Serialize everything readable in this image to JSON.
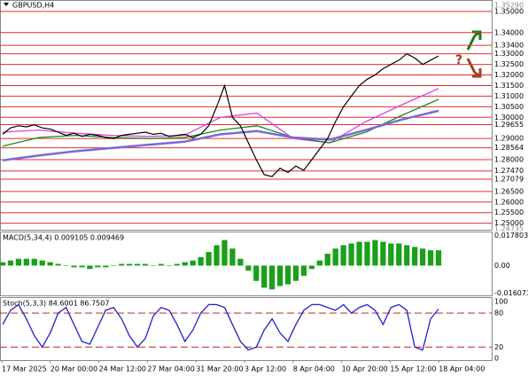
{
  "title": "GBPUSD,H4",
  "price": {
    "ylim": [
      1.24735,
      1.3529
    ],
    "ylim_labels": [
      "1.24735",
      "1.35290"
    ],
    "levels": [
      {
        "value": 1.35,
        "label": "1.35000"
      },
      {
        "value": 1.34,
        "label": "1.34000"
      },
      {
        "value": 1.334,
        "label": "1.33400"
      },
      {
        "value": 1.33,
        "label": "1.33000"
      },
      {
        "value": 1.325,
        "label": "1.32500"
      },
      {
        "value": 1.32,
        "label": "1.32000"
      },
      {
        "value": 1.315,
        "label": "1.31500"
      },
      {
        "value": 1.31,
        "label": "1.31000"
      },
      {
        "value": 1.305,
        "label": "1.30500"
      },
      {
        "value": 1.3,
        "label": "1.30000"
      },
      {
        "value": 1.29655,
        "label": "1.29655"
      },
      {
        "value": 1.29,
        "label": "1.29000"
      },
      {
        "value": 1.28564,
        "label": "1.28564"
      },
      {
        "value": 1.28,
        "label": "1.28000"
      },
      {
        "value": 1.2747,
        "label": "1.27470"
      },
      {
        "value": 1.27079,
        "label": "1.27079"
      },
      {
        "value": 1.265,
        "label": "1.26500"
      },
      {
        "value": 1.26,
        "label": "1.26000"
      },
      {
        "value": 1.255,
        "label": "1.25500"
      },
      {
        "value": 1.25,
        "label": "1.25000"
      }
    ],
    "close": [
      1.292,
      1.295,
      1.296,
      1.2955,
      1.2965,
      1.295,
      1.2945,
      1.293,
      1.2915,
      1.2925,
      1.291,
      1.292,
      1.2915,
      1.2905,
      1.29,
      1.2915,
      1.292,
      1.2925,
      1.293,
      1.292,
      1.2925,
      1.291,
      1.2915,
      1.292,
      1.2905,
      1.292,
      1.296,
      1.305,
      1.315,
      1.3,
      1.296,
      1.288,
      1.28,
      1.273,
      1.272,
      1.276,
      1.274,
      1.277,
      1.275,
      1.28,
      1.285,
      1.29,
      1.298,
      1.305,
      1.31,
      1.315,
      1.318,
      1.32,
      1.323,
      1.325,
      1.327,
      1.33,
      1.328,
      1.325,
      1.327,
      1.329
    ],
    "averages": [
      {
        "color": "#e040e0",
        "values": [
          1.293,
          1.294,
          1.2925,
          1.2915,
          1.291,
          1.2915,
          1.3,
          1.302,
          1.29,
          1.288,
          1.298,
          1.306,
          1.3136
        ]
      },
      {
        "color": "#1a8a1a",
        "values": [
          1.2864,
          1.2905,
          1.2915,
          1.2905,
          1.29,
          1.2905,
          1.294,
          1.296,
          1.2905,
          1.288,
          1.293,
          1.301,
          1.3085
        ]
      },
      {
        "color": "#7a6ad8",
        "values": [
          1.2797,
          1.282,
          1.284,
          1.2855,
          1.287,
          1.2885,
          1.292,
          1.2935,
          1.2905,
          1.2895,
          1.294,
          1.299,
          1.3031
        ]
      }
    ]
  },
  "macd": {
    "title": "MACD(5,34,4) 0.009105 0.009469",
    "ylim": [
      -0.0175,
      0.0195
    ],
    "yticks": [
      {
        "value": 0.017803,
        "label": "0.017803"
      },
      {
        "value": 0,
        "label": "0.00"
      },
      {
        "value": -0.016073,
        "label": "-0.016073"
      }
    ],
    "values": [
      0.002,
      0.003,
      0.004,
      0.004,
      0.004,
      0.003,
      0.002,
      0.001,
      0,
      -0.001,
      -0.001,
      -0.002,
      -0.001,
      -0.001,
      0,
      0.001,
      0.001,
      0.001,
      0.001,
      0,
      0.001,
      0,
      0.001,
      0.002,
      0.003,
      0.005,
      0.008,
      0.012,
      0.015,
      0.01,
      0.004,
      -0.003,
      -0.009,
      -0.013,
      -0.014,
      -0.012,
      -0.011,
      -0.009,
      -0.006,
      -0.002,
      0.003,
      0.007,
      0.01,
      0.012,
      0.013,
      0.014,
      0.014,
      0.015,
      0.014,
      0.013,
      0.013,
      0.012,
      0.011,
      0.01,
      0.009,
      0.009
    ]
  },
  "stoch": {
    "title": "Stoch(5,3,3) 84.6001 86.7507",
    "ylim": [
      -3,
      105
    ],
    "yticks": [
      100,
      80,
      20,
      0
    ],
    "levels": [
      80,
      20
    ],
    "values": [
      60,
      85,
      95,
      70,
      40,
      20,
      45,
      80,
      90,
      60,
      30,
      25,
      55,
      85,
      90,
      70,
      40,
      20,
      35,
      75,
      90,
      85,
      60,
      30,
      50,
      80,
      95,
      95,
      90,
      60,
      30,
      15,
      20,
      50,
      70,
      45,
      30,
      60,
      85,
      95,
      95,
      90,
      85,
      95,
      80,
      90,
      95,
      85,
      60,
      90,
      95,
      85,
      20,
      15,
      70,
      87
    ]
  },
  "dates": [
    "17 Mar 2025",
    "20 Mar 00:00",
    "24 Mar 12:00",
    "27 Mar 04:00",
    "31 Mar 20:00",
    "3 Apr 12:00",
    "8 Apr 04:00",
    "10 Apr 20:00",
    "15 Apr 12:00",
    "18 Apr 04:00"
  ]
}
